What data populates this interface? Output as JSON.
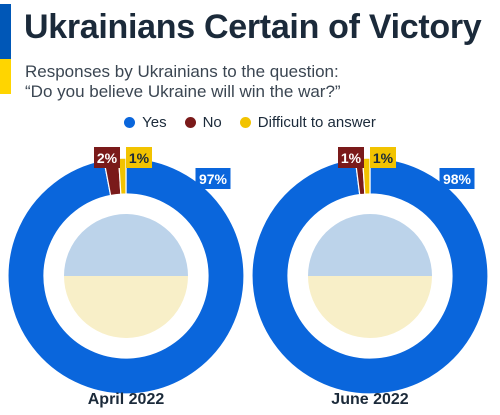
{
  "header": {
    "title": "Ukrainians Certain of Victory",
    "subtitle_line1": "Responses by Ukrainians to the question:",
    "subtitle_line2": "“Do you believe Ukraine will win the war?”"
  },
  "colors": {
    "yes": "#0a66dc",
    "no": "#7a1a1a",
    "difficult": "#f2c300",
    "flag_blue": "#0057b7",
    "flag_yellow": "#ffd500",
    "inner_top": "#bcd3ea",
    "inner_bottom": "#f8efc8"
  },
  "chart_data": {
    "type": "pie",
    "series_labels": [
      "Yes",
      "No",
      "Difficult to answer"
    ],
    "charts": [
      {
        "label": "April 2022",
        "values": [
          97,
          2,
          1
        ],
        "value_labels": [
          "97%",
          "2%",
          "1%"
        ]
      },
      {
        "label": "June 2022",
        "values": [
          98,
          1,
          1
        ],
        "value_labels": [
          "98%",
          "1%",
          "1%"
        ]
      }
    ],
    "legend_position": "top-center"
  }
}
